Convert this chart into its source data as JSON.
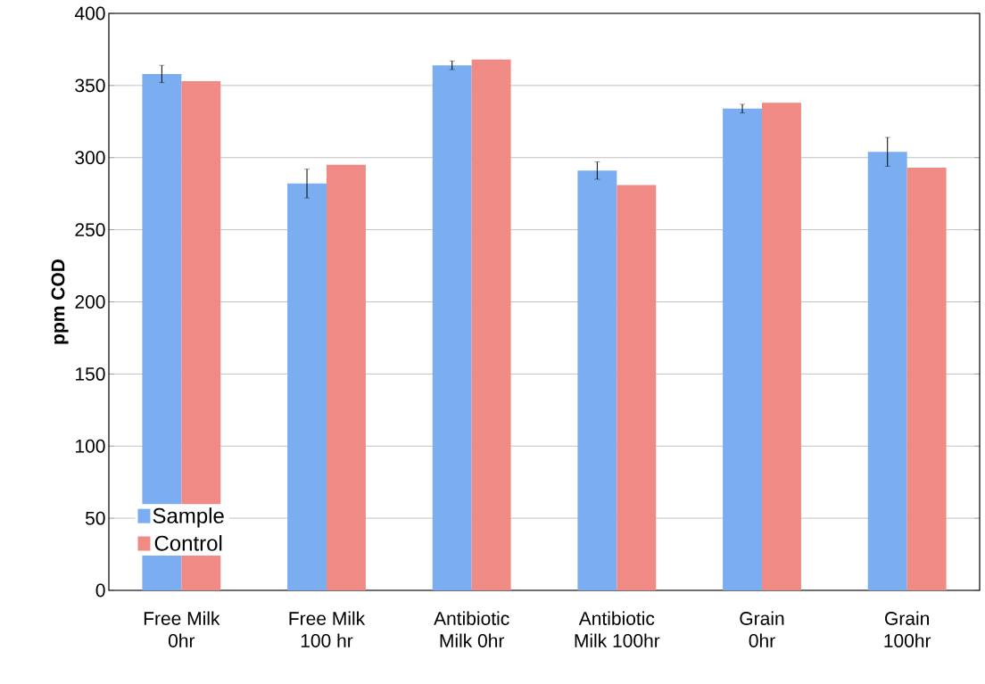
{
  "chart_data": {
    "type": "bar",
    "ylabel": "ppm COD",
    "categories": [
      "Free Milk\n0hr",
      "Free Milk\n100 hr",
      "Antibiotic\nMilk 0hr",
      "Antibiotic\nMilk 100hr",
      "Grain\n0hr",
      "Grain\n100hr"
    ],
    "series": [
      {
        "name": "Sample",
        "color": "#7aaef0",
        "values": [
          358,
          282,
          364,
          291,
          334,
          304
        ],
        "errors": [
          6,
          10,
          3,
          6,
          3,
          10
        ]
      },
      {
        "name": "Control",
        "color": "#f08a84",
        "values": [
          353,
          295,
          368,
          281,
          338,
          293
        ]
      }
    ],
    "ylim": [
      0,
      400
    ],
    "yticks": [
      0,
      50,
      100,
      150,
      200,
      250,
      300,
      350,
      400
    ],
    "grid": "y",
    "legend": "bottom left"
  }
}
